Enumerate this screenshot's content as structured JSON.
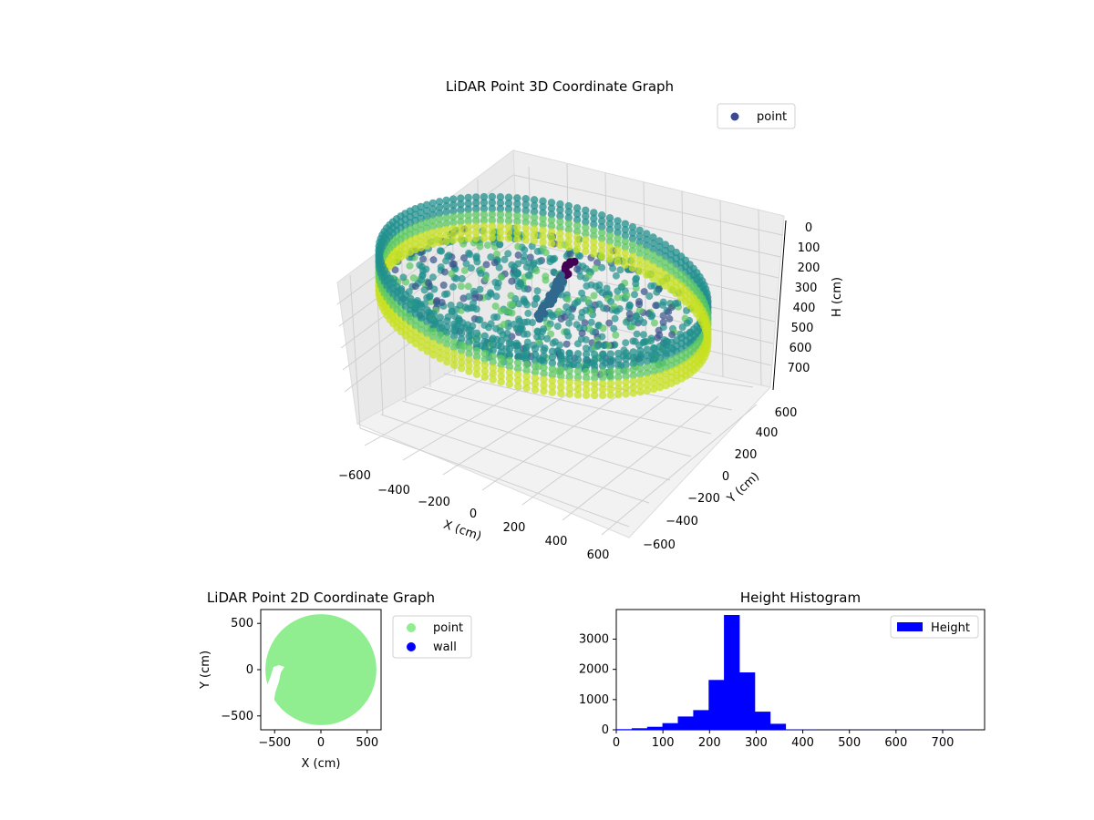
{
  "chart_data": [
    {
      "type": "scatter",
      "projection": "3d",
      "title": "LiDAR Point 3D Coordinate Graph",
      "xlabel": "X (cm)",
      "ylabel": "Y (cm)",
      "zlabel": "H (cm)",
      "xlim": [
        -650,
        650
      ],
      "ylim": [
        -650,
        650
      ],
      "zlim": [
        750,
        0
      ],
      "z_inverted": true,
      "xticks": [
        "−600",
        "−400",
        "−200",
        "0",
        "200",
        "400",
        "600"
      ],
      "yticks": [
        "−600",
        "−400",
        "−200",
        "0",
        "200",
        "400",
        "600"
      ],
      "zticks": [
        "0",
        "100",
        "200",
        "300",
        "400",
        "500",
        "600",
        "700"
      ],
      "colormap": "viridis",
      "legend": {
        "label": "point",
        "color": "#3b4994",
        "placement": "top-right"
      },
      "series": [
        {
          "name": "point",
          "description_ring": {
            "shape": "cylindrical wall",
            "radius": 560,
            "h_top": 120,
            "h_bottom": 300
          },
          "floor": {
            "shape": "disc",
            "radius": 520,
            "h": 230
          },
          "spike": {
            "x": 0,
            "y": 150,
            "h_top": 100,
            "h_bottom": 300
          }
        }
      ],
      "grid": true
    },
    {
      "type": "scatter",
      "title": "LiDAR Point 2D Coordinate Graph",
      "xlabel": "X (cm)",
      "ylabel": "Y (cm)",
      "xlim": [
        -650,
        650
      ],
      "ylim": [
        -650,
        650
      ],
      "xticks": [
        "−500",
        "0",
        "500"
      ],
      "yticks": [
        "−500",
        "0",
        "500"
      ],
      "legend": {
        "placement": "outside-right",
        "entries": [
          {
            "label": "point",
            "color": "#90ee90"
          },
          {
            "label": "wall",
            "color": "#0000ff"
          }
        ]
      },
      "series": [
        {
          "name": "point",
          "color": "#90ee90",
          "shape": "disc",
          "radius": 600
        },
        {
          "name": "wall",
          "color": "#0000ff",
          "shape": "none-visible"
        }
      ],
      "grid": false
    },
    {
      "type": "bar",
      "title": "Height Histogram",
      "xlabel": "",
      "ylabel": "",
      "xlim": [
        0,
        790
      ],
      "ylim": [
        0,
        3980
      ],
      "xticks": [
        "0",
        "100",
        "200",
        "300",
        "400",
        "500",
        "600",
        "700"
      ],
      "yticks": [
        "0",
        "1000",
        "2000",
        "3000"
      ],
      "bin_width": 33,
      "bin_starts": [
        0,
        33,
        66,
        99,
        132,
        165,
        198,
        231,
        264,
        297,
        330,
        363,
        396,
        429,
        462,
        495,
        528,
        561,
        594,
        627,
        660,
        693,
        726
      ],
      "values": [
        20,
        50,
        100,
        220,
        440,
        650,
        1650,
        3800,
        1900,
        600,
        200,
        10,
        5,
        3,
        3,
        3,
        3,
        3,
        2,
        2,
        2,
        2,
        2
      ],
      "color": "#0000ff",
      "legend": {
        "label": "Height",
        "color": "#0000ff",
        "placement": "top-right"
      },
      "grid": false
    }
  ]
}
